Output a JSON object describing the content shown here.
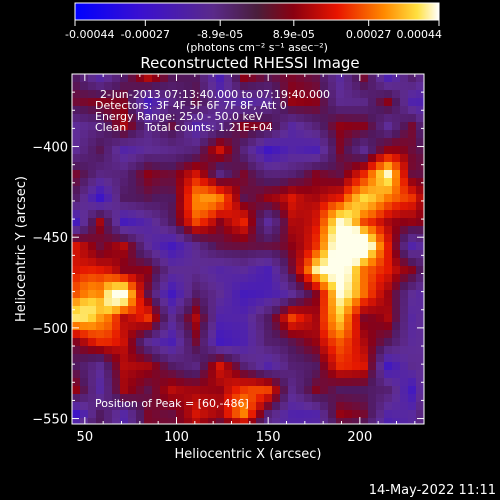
{
  "colorbar": {
    "tick_labels": [
      "-0.00044",
      "-0.00027",
      "-8.9e-05",
      "8.9e-05",
      "0.00027",
      "0.00044"
    ],
    "tick_values": [
      -0.00044,
      -0.00027,
      -8.9e-05,
      8.9e-05,
      0.00027,
      0.00044
    ],
    "unit_label": "(photons cm⁻² s⁻¹ asec⁻²)",
    "range": [
      -0.00044,
      0.00044
    ]
  },
  "chart_data": {
    "type": "heatmap",
    "title": "Reconstructed RHESSI Image",
    "xlabel": "Heliocentric X (arcsec)",
    "ylabel": "Heliocentric Y (arcsec)",
    "xlim": [
      43,
      235
    ],
    "ylim": [
      -553,
      -360
    ],
    "x_ticks": [
      50,
      100,
      150,
      200
    ],
    "x_tick_labels": [
      "50",
      "100",
      "150",
      "200"
    ],
    "y_ticks": [
      -550,
      -500,
      -450,
      -400
    ],
    "y_tick_labels": [
      "−550",
      "−500",
      "−450",
      "−400"
    ],
    "colormap": "rhessi-signed: blue(negative) to purple(0) to red, orange, yellow, white(positive)",
    "hot_regions": [
      {
        "x": 60,
        "y": -486,
        "strength": 1.0
      },
      {
        "x": 195,
        "y": -440,
        "strength": 0.9
      },
      {
        "x": 190,
        "y": -470,
        "strength": 0.6
      },
      {
        "x": 185,
        "y": -500,
        "strength": 0.5
      },
      {
        "x": 218,
        "y": -410,
        "strength": 0.5
      },
      {
        "x": 120,
        "y": -430,
        "strength": 0.55
      },
      {
        "x": 135,
        "y": -540,
        "strength": 0.45
      }
    ],
    "annotations": [
      "2-Jun-2013 07:13:40.000 to 07:19:40.000",
      "Detectors: 3F 4F 5F 6F 7F 8F, Att 0",
      "Energy Range: 25.0 - 50.0 keV",
      "Clean",
      "Total counts: 1.21E+04",
      "Position of Peak = [60,-486]"
    ]
  },
  "footer": {
    "date_stamp": "14-May-2022 11:11"
  }
}
